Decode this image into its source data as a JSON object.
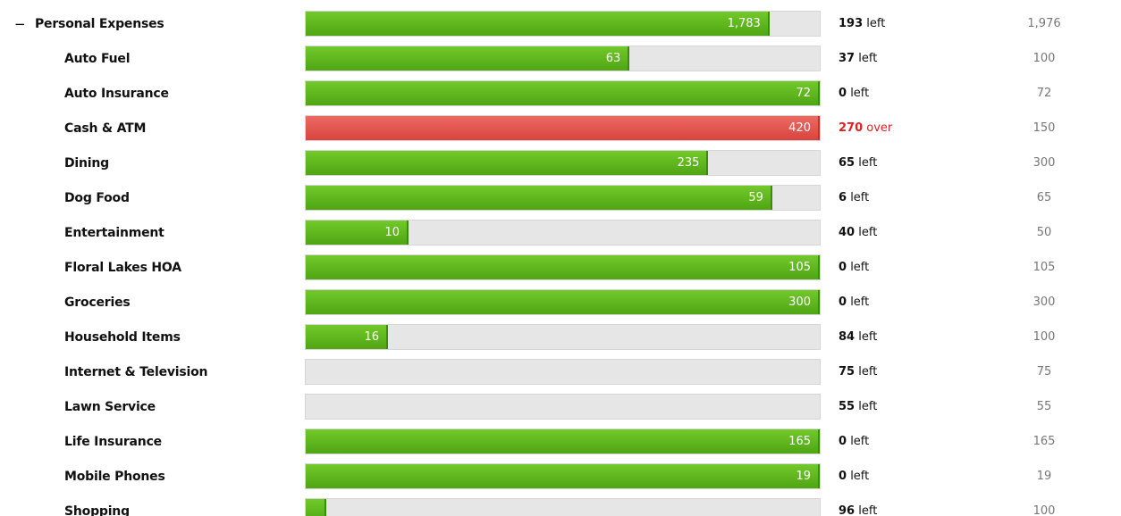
{
  "header": {
    "toggle": "−",
    "name": "Personal Expenses",
    "spent": {
      "value": 1783,
      "label": "1,783"
    },
    "remaining": 193,
    "status": "left",
    "budget": {
      "value": 1976,
      "label": "1,976"
    }
  },
  "rows": [
    {
      "name": "Auto Fuel",
      "spent": 63,
      "remaining": 37,
      "status": "left",
      "budget": 100
    },
    {
      "name": "Auto Insurance",
      "spent": 72,
      "remaining": 0,
      "status": "left",
      "budget": 72
    },
    {
      "name": "Cash & ATM",
      "spent": 420,
      "remaining": 270,
      "status": "over",
      "budget": 150
    },
    {
      "name": "Dining",
      "spent": 235,
      "remaining": 65,
      "status": "left",
      "budget": 300
    },
    {
      "name": "Dog Food",
      "spent": 59,
      "remaining": 6,
      "status": "left",
      "budget": 65
    },
    {
      "name": "Entertainment",
      "spent": 10,
      "remaining": 40,
      "status": "left",
      "budget": 50
    },
    {
      "name": "Floral Lakes HOA",
      "spent": 105,
      "remaining": 0,
      "status": "left",
      "budget": 105
    },
    {
      "name": "Groceries",
      "spent": 300,
      "remaining": 0,
      "status": "left",
      "budget": 300
    },
    {
      "name": "Household Items",
      "spent": 16,
      "remaining": 84,
      "status": "left",
      "budget": 100
    },
    {
      "name": "Internet & Television",
      "spent": 0,
      "remaining": 75,
      "status": "left",
      "budget": 75
    },
    {
      "name": "Lawn Service",
      "spent": 0,
      "remaining": 55,
      "status": "left",
      "budget": 55
    },
    {
      "name": "Life Insurance",
      "spent": 165,
      "remaining": 0,
      "status": "left",
      "budget": 165
    },
    {
      "name": "Mobile Phones",
      "spent": 19,
      "remaining": 0,
      "status": "left",
      "budget": 19
    },
    {
      "name": "Shopping",
      "spent": 4,
      "remaining": 96,
      "status": "left",
      "budget": 100
    }
  ]
}
